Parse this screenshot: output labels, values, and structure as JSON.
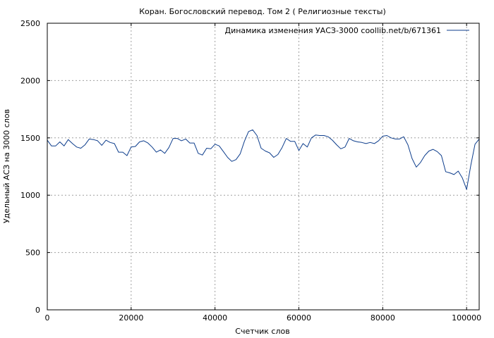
{
  "chart_data": {
    "type": "line",
    "title": "Коран. Богословский перевод. Том 2 ( Религиозные тексты)",
    "xlabel": "Счетчик слов",
    "ylabel": "Удельный АСЗ на 3000 слов",
    "xlim": [
      0,
      103000
    ],
    "ylim": [
      0,
      2500
    ],
    "xticks": [
      0,
      20000,
      40000,
      60000,
      80000,
      100000
    ],
    "xtick_labels": [
      "0",
      "20000",
      "40000",
      "60000",
      "80000",
      "100000"
    ],
    "yticks": [
      0,
      500,
      1000,
      1500,
      2000,
      2500
    ],
    "ytick_labels": [
      "0",
      "500",
      "1000",
      "1500",
      "2000",
      "2500"
    ],
    "grid": true,
    "legend_position": "top-right",
    "series": [
      {
        "name": "Динамика изменения УАСЗ-3000 coollib.net/b/671361",
        "color": "#0d3d8c",
        "x": [
          0,
          1000,
          2000,
          3000,
          4000,
          5000,
          6000,
          7000,
          8000,
          9000,
          10000,
          11000,
          12000,
          13000,
          14000,
          15000,
          16000,
          17000,
          18000,
          19000,
          20000,
          21000,
          22000,
          23000,
          24000,
          25000,
          26000,
          27000,
          28000,
          29000,
          30000,
          31000,
          32000,
          33000,
          34000,
          35000,
          36000,
          37000,
          38000,
          39000,
          40000,
          41000,
          42000,
          43000,
          44000,
          45000,
          46000,
          47000,
          48000,
          49000,
          50000,
          51000,
          52000,
          53000,
          54000,
          55000,
          56000,
          57000,
          58000,
          59000,
          60000,
          61000,
          62000,
          63000,
          64000,
          65000,
          66000,
          67000,
          68000,
          69000,
          70000,
          71000,
          72000,
          73000,
          74000,
          75000,
          76000,
          77000,
          78000,
          79000,
          80000,
          81000,
          82000,
          83000,
          84000,
          85000,
          86000,
          87000,
          88000,
          89000,
          90000,
          91000,
          92000,
          93000,
          94000,
          95000,
          96000,
          97000,
          98000,
          99000,
          100000,
          101000,
          102000,
          103000
        ],
        "values": [
          1480,
          1430,
          1430,
          1465,
          1430,
          1485,
          1450,
          1420,
          1410,
          1440,
          1490,
          1485,
          1475,
          1435,
          1480,
          1460,
          1450,
          1375,
          1375,
          1345,
          1420,
          1425,
          1465,
          1475,
          1455,
          1420,
          1375,
          1395,
          1365,
          1415,
          1495,
          1495,
          1475,
          1490,
          1455,
          1455,
          1365,
          1350,
          1410,
          1405,
          1445,
          1430,
          1380,
          1330,
          1295,
          1310,
          1360,
          1470,
          1555,
          1570,
          1520,
          1410,
          1385,
          1370,
          1330,
          1355,
          1415,
          1495,
          1470,
          1470,
          1390,
          1450,
          1420,
          1500,
          1525,
          1520,
          1520,
          1510,
          1480,
          1440,
          1405,
          1420,
          1495,
          1475,
          1465,
          1460,
          1450,
          1460,
          1450,
          1475,
          1515,
          1520,
          1500,
          1490,
          1490,
          1510,
          1440,
          1320,
          1245,
          1285,
          1345,
          1385,
          1400,
          1380,
          1345,
          1205,
          1195,
          1180,
          1210,
          1150,
          1050,
          1260,
          1445,
          1490
        ]
      }
    ]
  }
}
